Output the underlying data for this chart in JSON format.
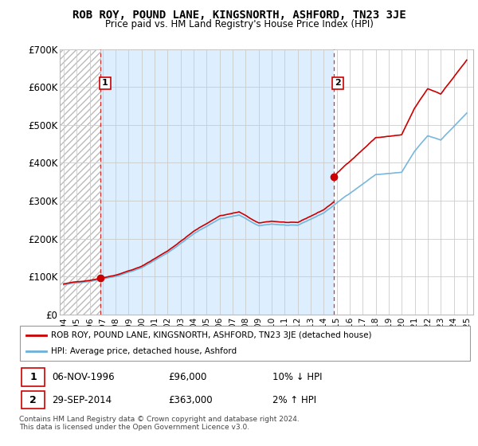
{
  "title": "ROB ROY, POUND LANE, KINGSNORTH, ASHFORD, TN23 3JE",
  "subtitle": "Price paid vs. HM Land Registry's House Price Index (HPI)",
  "sale1_date": "06-NOV-1996",
  "sale1_price": 96000,
  "sale1_hpi": "10% ↓ HPI",
  "sale2_date": "29-SEP-2014",
  "sale2_price": 363000,
  "sale2_hpi": "2% ↑ HPI",
  "legend1": "ROB ROY, POUND LANE, KINGSNORTH, ASHFORD, TN23 3JE (detached house)",
  "legend2": "HPI: Average price, detached house, Ashford",
  "footnote": "Contains HM Land Registry data © Crown copyright and database right 2024.\nThis data is licensed under the Open Government Licence v3.0.",
  "hpi_color": "#6ab0d8",
  "price_color": "#cc0000",
  "ylim": [
    0,
    700000
  ],
  "xlim_start": 1993.7,
  "xlim_end": 2025.5,
  "ylabel_ticks": [
    0,
    100000,
    200000,
    300000,
    400000,
    500000,
    600000,
    700000
  ],
  "ylabel_labels": [
    "£0",
    "£100K",
    "£200K",
    "£300K",
    "£400K",
    "£500K",
    "£600K",
    "£700K"
  ],
  "xticks": [
    1994,
    1995,
    1996,
    1997,
    1998,
    1999,
    2000,
    2001,
    2002,
    2003,
    2004,
    2005,
    2006,
    2007,
    2008,
    2009,
    2010,
    2011,
    2012,
    2013,
    2014,
    2015,
    2016,
    2017,
    2018,
    2019,
    2020,
    2021,
    2022,
    2023,
    2024,
    2025
  ],
  "sale1_x": 1996.85,
  "sale1_y": 96000,
  "sale2_x": 2014.75,
  "sale2_y": 363000,
  "hatch_end": 1996.85,
  "bg_color": "#ddeeff",
  "hatch_color": "#cccccc"
}
